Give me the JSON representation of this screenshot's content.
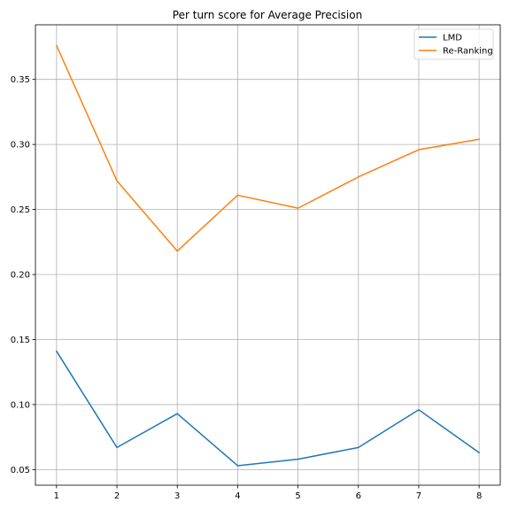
{
  "chart_data": {
    "type": "line",
    "title": "Per turn score for Average Precision",
    "xlabel": "",
    "ylabel": "",
    "x": [
      1,
      2,
      3,
      4,
      5,
      6,
      7,
      8
    ],
    "xticks": [
      "1",
      "2",
      "3",
      "4",
      "5",
      "6",
      "7",
      "8"
    ],
    "yticks": [
      "0.05",
      "0.10",
      "0.15",
      "0.20",
      "0.25",
      "0.30",
      "0.35"
    ],
    "xlim": [
      0.65,
      8.35
    ],
    "ylim": [
      0.038,
      0.392
    ],
    "grid": true,
    "legend_position": "top-right",
    "series": [
      {
        "name": "LMD",
        "color": "#1f77b4",
        "values": [
          0.141,
          0.067,
          0.093,
          0.053,
          0.058,
          0.067,
          0.096,
          0.063
        ]
      },
      {
        "name": "Re-Ranking",
        "color": "#ff7f0e",
        "values": [
          0.376,
          0.272,
          0.218,
          0.261,
          0.251,
          0.275,
          0.296,
          0.304
        ]
      }
    ]
  }
}
